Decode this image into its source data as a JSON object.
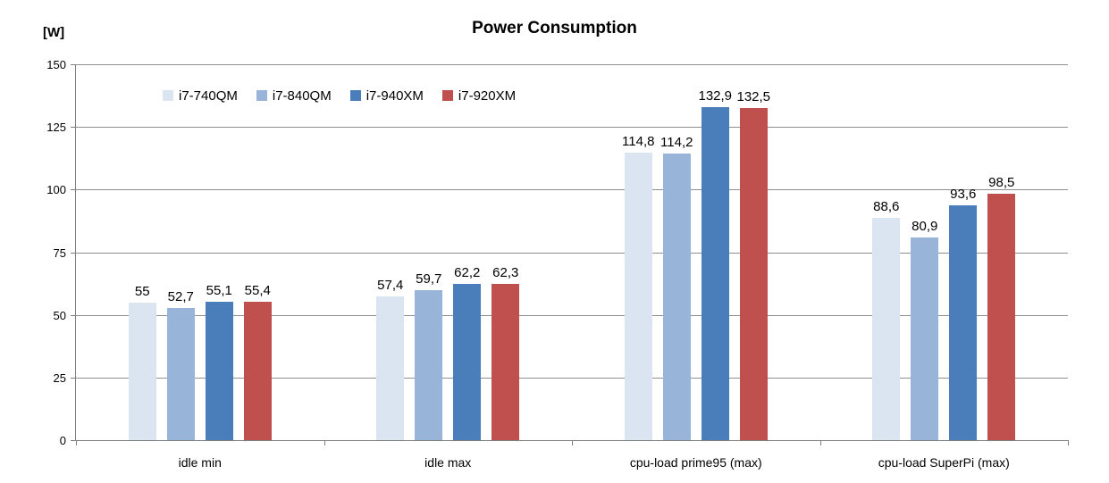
{
  "title": "Power Consumption",
  "unit_label": "[W]",
  "y_axis": {
    "ticks": [
      "150",
      "125",
      "100",
      "75",
      "50",
      "25",
      "0"
    ],
    "max": 150
  },
  "chart_data": {
    "type": "bar",
    "title": "Power Consumption",
    "xlabel": "",
    "ylabel": "[W]",
    "ylim": [
      0,
      150
    ],
    "grid": true,
    "legend_position": "top-left-horizontal",
    "categories": [
      "idle min",
      "idle max",
      "cpu-load prime95 (max)",
      "cpu-load SuperPi (max)"
    ],
    "series": [
      {
        "name": "i7-740QM",
        "color": "#dbe5f1",
        "values": [
          55,
          57.4,
          114.8,
          88.6
        ],
        "value_labels": [
          "55",
          "57,4",
          "114,8",
          "88,6"
        ]
      },
      {
        "name": "i7-840QM",
        "color": "#99b4d9",
        "values": [
          52.7,
          59.7,
          114.2,
          80.9
        ],
        "value_labels": [
          "52,7",
          "59,7",
          "114,2",
          "80,9"
        ]
      },
      {
        "name": "i7-940XM",
        "color": "#4a7ebb",
        "values": [
          55.1,
          62.2,
          132.9,
          93.6
        ],
        "value_labels": [
          "55,1",
          "62,2",
          "132,9",
          "93,6"
        ]
      },
      {
        "name": "i7-920XM",
        "color": "#c0504d",
        "values": [
          55.4,
          62.3,
          132.5,
          98.5
        ],
        "value_labels": [
          "55,4",
          "62,3",
          "132,5",
          "98,5"
        ]
      }
    ]
  }
}
